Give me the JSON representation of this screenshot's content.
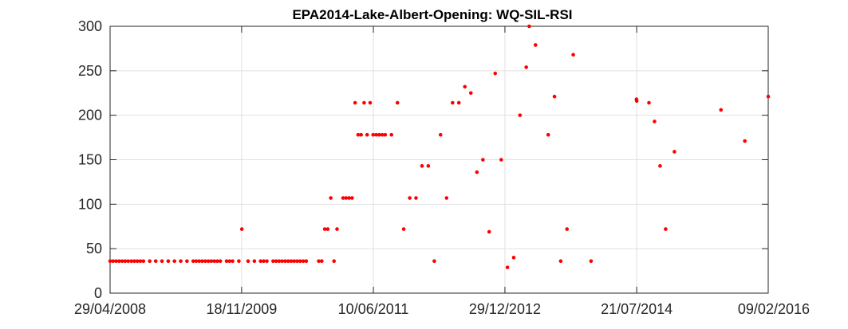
{
  "chart_data": {
    "type": "scatter",
    "title": "EPA2014-Lake-Albert-Opening: WQ-SIL-RSI",
    "xlabel": "",
    "ylabel": "",
    "x_axis_type": "date",
    "xlim": [
      "2008-04-29",
      "2016-02-09"
    ],
    "ylim": [
      0,
      300
    ],
    "x_ticks": [
      "29/04/2008",
      "18/11/2009",
      "10/06/2011",
      "29/12/2012",
      "21/07/2014",
      "09/02/2016"
    ],
    "y_ticks": [
      0,
      50,
      100,
      150,
      200,
      250,
      300
    ],
    "grid": true,
    "legend": "none",
    "marker_color": "#ff0000",
    "points": [
      [
        "2008-04-29",
        36
      ],
      [
        "2008-05-12",
        36
      ],
      [
        "2008-05-25",
        36
      ],
      [
        "2008-06-07",
        36
      ],
      [
        "2008-06-20",
        36
      ],
      [
        "2008-07-03",
        36
      ],
      [
        "2008-07-16",
        36
      ],
      [
        "2008-07-30",
        36
      ],
      [
        "2008-08-12",
        36
      ],
      [
        "2008-08-25",
        36
      ],
      [
        "2008-09-07",
        36
      ],
      [
        "2008-09-20",
        36
      ],
      [
        "2008-10-17",
        36
      ],
      [
        "2008-11-12",
        36
      ],
      [
        "2008-12-09",
        36
      ],
      [
        "2009-01-05",
        36
      ],
      [
        "2009-02-01",
        36
      ],
      [
        "2009-02-28",
        36
      ],
      [
        "2009-03-27",
        36
      ],
      [
        "2009-04-23",
        36
      ],
      [
        "2009-05-06",
        36
      ],
      [
        "2009-05-19",
        36
      ],
      [
        "2009-06-01",
        36
      ],
      [
        "2009-06-14",
        36
      ],
      [
        "2009-06-27",
        36
      ],
      [
        "2009-07-10",
        36
      ],
      [
        "2009-07-23",
        36
      ],
      [
        "2009-08-05",
        36
      ],
      [
        "2009-08-18",
        36
      ],
      [
        "2009-09-14",
        36
      ],
      [
        "2009-09-27",
        36
      ],
      [
        "2009-10-10",
        36
      ],
      [
        "2009-11-06",
        36
      ],
      [
        "2009-11-19",
        72
      ],
      [
        "2009-12-16",
        36
      ],
      [
        "2010-01-12",
        36
      ],
      [
        "2010-02-08",
        36
      ],
      [
        "2010-02-21",
        36
      ],
      [
        "2010-03-07",
        36
      ],
      [
        "2010-04-03",
        36
      ],
      [
        "2010-04-16",
        36
      ],
      [
        "2010-04-29",
        36
      ],
      [
        "2010-05-12",
        36
      ],
      [
        "2010-05-25",
        36
      ],
      [
        "2010-06-07",
        36
      ],
      [
        "2010-06-20",
        36
      ],
      [
        "2010-07-03",
        36
      ],
      [
        "2010-07-16",
        36
      ],
      [
        "2010-07-29",
        36
      ],
      [
        "2010-08-11",
        36
      ],
      [
        "2010-08-24",
        36
      ],
      [
        "2010-10-17",
        36
      ],
      [
        "2010-10-30",
        36
      ],
      [
        "2010-11-12",
        72
      ],
      [
        "2010-11-25",
        72
      ],
      [
        "2010-12-08",
        107
      ],
      [
        "2010-12-22",
        36
      ],
      [
        "2011-01-04",
        72
      ],
      [
        "2011-01-30",
        107
      ],
      [
        "2011-02-12",
        107
      ],
      [
        "2011-02-25",
        107
      ],
      [
        "2011-03-10",
        107
      ],
      [
        "2011-03-23",
        214
      ],
      [
        "2011-04-05",
        178
      ],
      [
        "2011-04-18",
        178
      ],
      [
        "2011-05-01",
        214
      ],
      [
        "2011-05-14",
        178
      ],
      [
        "2011-05-27",
        214
      ],
      [
        "2011-06-09",
        178
      ],
      [
        "2011-06-22",
        178
      ],
      [
        "2011-07-05",
        178
      ],
      [
        "2011-07-18",
        178
      ],
      [
        "2011-07-31",
        178
      ],
      [
        "2011-08-27",
        178
      ],
      [
        "2011-09-22",
        214
      ],
      [
        "2011-10-19",
        72
      ],
      [
        "2011-11-14",
        107
      ],
      [
        "2011-12-11",
        107
      ],
      [
        "2012-01-06",
        143
      ],
      [
        "2012-02-02",
        143
      ],
      [
        "2012-02-28",
        36
      ],
      [
        "2012-03-26",
        178
      ],
      [
        "2012-04-21",
        107
      ],
      [
        "2012-05-17",
        214
      ],
      [
        "2012-06-13",
        214
      ],
      [
        "2012-07-09",
        232
      ],
      [
        "2012-08-04",
        225
      ],
      [
        "2012-08-30",
        136
      ],
      [
        "2012-09-25",
        150
      ],
      [
        "2012-10-22",
        69
      ],
      [
        "2012-11-17",
        247
      ],
      [
        "2012-12-13",
        150
      ],
      [
        "2013-01-09",
        29
      ],
      [
        "2013-02-05",
        40
      ],
      [
        "2013-03-04",
        200
      ],
      [
        "2013-03-31",
        254
      ],
      [
        "2013-04-13",
        300
      ],
      [
        "2013-05-10",
        279
      ],
      [
        "2013-07-04",
        178
      ],
      [
        "2013-07-31",
        221
      ],
      [
        "2013-08-27",
        36
      ],
      [
        "2013-09-23",
        72
      ],
      [
        "2013-10-20",
        268
      ],
      [
        "2014-01-05",
        36
      ],
      [
        "2014-07-20",
        218
      ],
      [
        "2014-07-21",
        216
      ],
      [
        "2014-09-12",
        214
      ],
      [
        "2014-10-06",
        193
      ],
      [
        "2014-10-30",
        143
      ],
      [
        "2014-11-23",
        72
      ],
      [
        "2014-12-31",
        159
      ],
      [
        "2015-07-20",
        206
      ],
      [
        "2015-10-31",
        171
      ],
      [
        "2016-02-09",
        221
      ]
    ]
  }
}
